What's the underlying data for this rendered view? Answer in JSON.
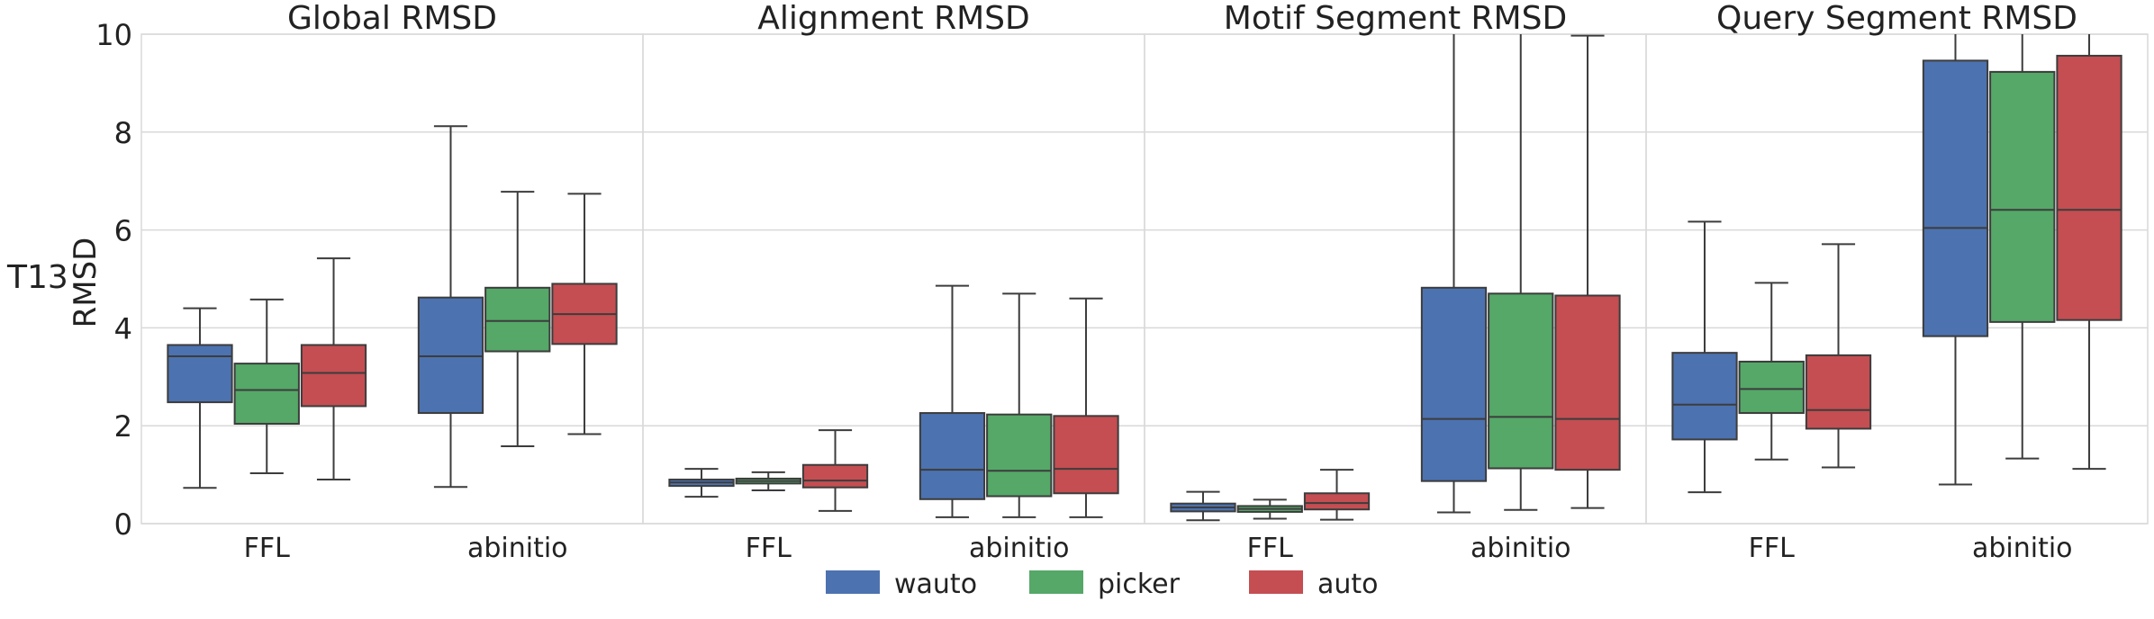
{
  "chart_data": {
    "type": "box",
    "row_label": "T13",
    "ylabel": "RMSD",
    "ylim": [
      0,
      10
    ],
    "yticks": [
      0,
      2,
      4,
      6,
      8,
      10
    ],
    "grid": true,
    "legend_position": "bottom-center",
    "categories": [
      "FFL",
      "abinitio"
    ],
    "series": [
      {
        "name": "wauto",
        "color": "#4c72b0"
      },
      {
        "name": "picker",
        "color": "#55a868"
      },
      {
        "name": "auto",
        "color": "#c44e52"
      }
    ],
    "panels": [
      {
        "title": "Global RMSD",
        "boxes": {
          "FFL": [
            {
              "series": "wauto",
              "whislo": 0.73,
              "q1": 2.48,
              "med": 3.42,
              "q3": 3.65,
              "whishi": 4.4
            },
            {
              "series": "picker",
              "whislo": 1.03,
              "q1": 2.04,
              "med": 2.73,
              "q3": 3.27,
              "whishi": 4.58
            },
            {
              "series": "auto",
              "whislo": 0.9,
              "q1": 2.4,
              "med": 3.08,
              "q3": 3.65,
              "whishi": 5.42
            }
          ],
          "abinitio": [
            {
              "series": "wauto",
              "whislo": 0.75,
              "q1": 2.26,
              "med": 3.42,
              "q3": 4.62,
              "whishi": 8.12
            },
            {
              "series": "picker",
              "whislo": 1.58,
              "q1": 3.52,
              "med": 4.14,
              "q3": 4.82,
              "whishi": 6.78
            },
            {
              "series": "auto",
              "whislo": 1.83,
              "q1": 3.67,
              "med": 4.28,
              "q3": 4.9,
              "whishi": 6.74
            }
          ]
        }
      },
      {
        "title": "Alignment RMSD",
        "boxes": {
          "FFL": [
            {
              "series": "wauto",
              "whislo": 0.55,
              "q1": 0.77,
              "med": 0.84,
              "q3": 0.9,
              "whishi": 1.12
            },
            {
              "series": "picker",
              "whislo": 0.68,
              "q1": 0.82,
              "med": 0.87,
              "q3": 0.92,
              "whishi": 1.05
            },
            {
              "series": "auto",
              "whislo": 0.26,
              "q1": 0.74,
              "med": 0.88,
              "q3": 1.2,
              "whishi": 1.91
            }
          ],
          "abinitio": [
            {
              "series": "wauto",
              "whislo": 0.13,
              "q1": 0.5,
              "med": 1.1,
              "q3": 2.26,
              "whishi": 4.86
            },
            {
              "series": "picker",
              "whislo": 0.13,
              "q1": 0.56,
              "med": 1.08,
              "q3": 2.23,
              "whishi": 4.7
            },
            {
              "series": "auto",
              "whislo": 0.13,
              "q1": 0.62,
              "med": 1.12,
              "q3": 2.2,
              "whishi": 4.6
            }
          ]
        }
      },
      {
        "title": "Motif Segment RMSD",
        "boxes": {
          "FFL": [
            {
              "series": "wauto",
              "whislo": 0.07,
              "q1": 0.25,
              "med": 0.33,
              "q3": 0.41,
              "whishi": 0.65
            },
            {
              "series": "picker",
              "whislo": 0.1,
              "q1": 0.24,
              "med": 0.3,
              "q3": 0.36,
              "whishi": 0.49
            },
            {
              "series": "auto",
              "whislo": 0.08,
              "q1": 0.29,
              "med": 0.42,
              "q3": 0.62,
              "whishi": 1.1
            }
          ],
          "abinitio": [
            {
              "series": "wauto",
              "whislo": 0.23,
              "q1": 0.87,
              "med": 2.14,
              "q3": 4.82,
              "whishi": 10.0
            },
            {
              "series": "picker",
              "whislo": 0.28,
              "q1": 1.13,
              "med": 2.18,
              "q3": 4.7,
              "whishi": 10.0
            },
            {
              "series": "auto",
              "whislo": 0.32,
              "q1": 1.1,
              "med": 2.14,
              "q3": 4.66,
              "whishi": 9.97
            }
          ]
        }
      },
      {
        "title": "Query Segment RMSD",
        "boxes": {
          "FFL": [
            {
              "series": "wauto",
              "whislo": 0.64,
              "q1": 1.72,
              "med": 2.43,
              "q3": 3.49,
              "whishi": 6.17
            },
            {
              "series": "picker",
              "whislo": 1.31,
              "q1": 2.26,
              "med": 2.75,
              "q3": 3.31,
              "whishi": 4.92
            },
            {
              "series": "auto",
              "whislo": 1.15,
              "q1": 1.94,
              "med": 2.32,
              "q3": 3.44,
              "whishi": 5.71
            }
          ],
          "abinitio": [
            {
              "series": "wauto",
              "whislo": 0.8,
              "q1": 3.83,
              "med": 6.04,
              "q3": 9.46,
              "whishi": 10.0
            },
            {
              "series": "picker",
              "whislo": 1.33,
              "q1": 4.12,
              "med": 6.41,
              "q3": 9.23,
              "whishi": 10.0
            },
            {
              "series": "auto",
              "whislo": 1.12,
              "q1": 4.16,
              "med": 6.41,
              "q3": 9.56,
              "whishi": 10.0
            }
          ]
        }
      }
    ]
  }
}
